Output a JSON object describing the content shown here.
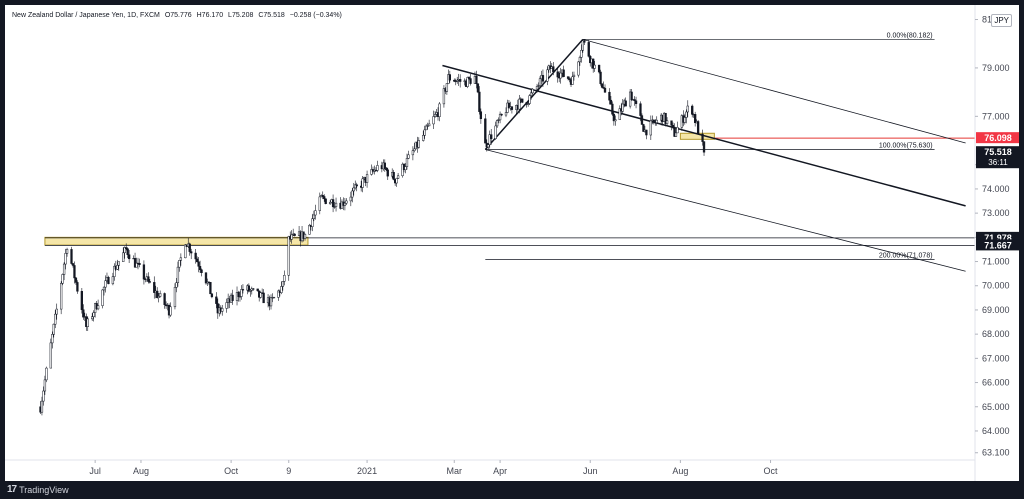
{
  "chart_title": {
    "symbol": "New Zealand Dollar / Japanese Yen, 1D, FXCM",
    "open": "O75.776",
    "high": "H76.170",
    "low": "L75.208",
    "close": "C75.518",
    "change": "−0.258 (−0.34%)"
  },
  "currency": "JPY",
  "footer": {
    "brand": "TradingView",
    "logo_icon": "tradingview-logo-icon"
  },
  "colors": {
    "background": "#ffffff",
    "frame": "#131722",
    "candle": "#131722",
    "zone_fill": "#f5e6a8",
    "zone_stroke": "#b59a2d",
    "red_line": "#e53935",
    "price_badge_red": "#f23645",
    "price_badge_dark": "#131722",
    "text": "#131722",
    "axis_text": "#434651"
  },
  "chart_data": {
    "type": "candlestick",
    "ylim": [
      62.8,
      81.6
    ],
    "y_ticks": [
      "63.100",
      "64.000",
      "65.000",
      "66.000",
      "67.000",
      "68.000",
      "69.000",
      "70.000",
      "71.000",
      "72.000",
      "73.000",
      "74.000",
      "75.000",
      "77.000",
      "79.000",
      "81.000"
    ],
    "x_ticks": [
      "Jul",
      "Aug",
      "Oct",
      "9",
      "2021",
      "Mar",
      "Apr",
      "Jun",
      "Aug",
      "Oct"
    ],
    "price_badges": [
      {
        "label": "76.098",
        "price": 76.098,
        "style": "red"
      },
      {
        "label": "75.518",
        "price": 75.518,
        "style": "dark",
        "sub": "36:11"
      },
      {
        "label": "71.978",
        "price": 71.978,
        "style": "dark"
      },
      {
        "label": "71.667",
        "price": 71.667,
        "style": "dark"
      }
    ],
    "fib_labels": [
      {
        "text": "0.00%(80.182)",
        "price": 80.182
      },
      {
        "text": "100.00%(75.630)",
        "price": 75.63
      },
      {
        "text": "200.00%(71.078)",
        "price": 71.078
      }
    ],
    "anchors": [
      {
        "date": "2020-05-25",
        "price": 65.0
      },
      {
        "date": "2020-06-05",
        "price": 69.0
      },
      {
        "date": "2020-06-12",
        "price": 71.7
      },
      {
        "date": "2020-06-25",
        "price": 68.3
      },
      {
        "date": "2020-07-10",
        "price": 70.3
      },
      {
        "date": "2020-07-22",
        "price": 71.5
      },
      {
        "date": "2020-08-05",
        "price": 70.2
      },
      {
        "date": "2020-08-20",
        "price": 69.0
      },
      {
        "date": "2020-08-31",
        "price": 71.9
      },
      {
        "date": "2020-09-12",
        "price": 70.6
      },
      {
        "date": "2020-09-22",
        "price": 68.9
      },
      {
        "date": "2020-10-10",
        "price": 69.9
      },
      {
        "date": "2020-10-28",
        "price": 69.3
      },
      {
        "date": "2020-11-05",
        "price": 70.0
      },
      {
        "date": "2020-11-09",
        "price": 71.9
      },
      {
        "date": "2020-11-20",
        "price": 72.1
      },
      {
        "date": "2020-12-01",
        "price": 73.6
      },
      {
        "date": "2020-12-15",
        "price": 73.4
      },
      {
        "date": "2020-12-31",
        "price": 74.4
      },
      {
        "date": "2021-01-10",
        "price": 75.0
      },
      {
        "date": "2021-01-20",
        "price": 74.4
      },
      {
        "date": "2021-02-05",
        "price": 75.9
      },
      {
        "date": "2021-02-19",
        "price": 77.3
      },
      {
        "date": "2021-02-25",
        "price": 78.6
      },
      {
        "date": "2021-03-08",
        "price": 78.4
      },
      {
        "date": "2021-03-15",
        "price": 78.6
      },
      {
        "date": "2021-03-22",
        "price": 75.8
      },
      {
        "date": "2021-04-05",
        "price": 77.3
      },
      {
        "date": "2021-04-20",
        "price": 77.7
      },
      {
        "date": "2021-05-05",
        "price": 79.0
      },
      {
        "date": "2021-05-20",
        "price": 78.5
      },
      {
        "date": "2021-05-27",
        "price": 80.1
      },
      {
        "date": "2021-06-08",
        "price": 78.5
      },
      {
        "date": "2021-06-18",
        "price": 76.8
      },
      {
        "date": "2021-06-28",
        "price": 78.0
      },
      {
        "date": "2021-07-08",
        "price": 76.4
      },
      {
        "date": "2021-07-20",
        "price": 77.0
      },
      {
        "date": "2021-07-28",
        "price": 76.3
      },
      {
        "date": "2021-08-08",
        "price": 77.5
      },
      {
        "date": "2021-08-17",
        "price": 75.55
      }
    ],
    "horizontal_lines": [
      {
        "price": 71.978
      },
      {
        "price": 71.667
      }
    ],
    "zones": [
      {
        "from": "2020-05-28",
        "to": "2020-11-22",
        "top": 72.0,
        "bottom": 71.68
      },
      {
        "from": "2021-08-01",
        "to": "2021-08-24",
        "top": 76.3,
        "bottom": 76.05
      }
    ],
    "trend_lines": [
      {
        "from": [
          "2021-02-21",
          79.1
        ],
        "to": [
          "2022-02-10",
          73.3
        ]
      },
      {
        "from": [
          "2021-03-22",
          75.63
        ],
        "to": [
          "2021-05-27",
          80.18
        ]
      }
    ],
    "channel_lines": [
      {
        "from": [
          "2021-05-27",
          80.18
        ],
        "to": [
          "2022-02-10",
          75.9
        ]
      },
      {
        "from": [
          "2021-03-22",
          75.63
        ],
        "to": [
          "2022-02-10",
          70.6
        ]
      }
    ],
    "fib_lines": [
      {
        "price": 80.182,
        "from": "2021-05-27",
        "to": "2022-01-20"
      },
      {
        "price": 75.63,
        "from": "2021-03-22",
        "to": "2022-01-20"
      },
      {
        "price": 71.078,
        "from": "2021-03-22",
        "to": "2022-01-20"
      }
    ],
    "red_line": {
      "price": 76.098,
      "from": "2021-08-24"
    }
  }
}
